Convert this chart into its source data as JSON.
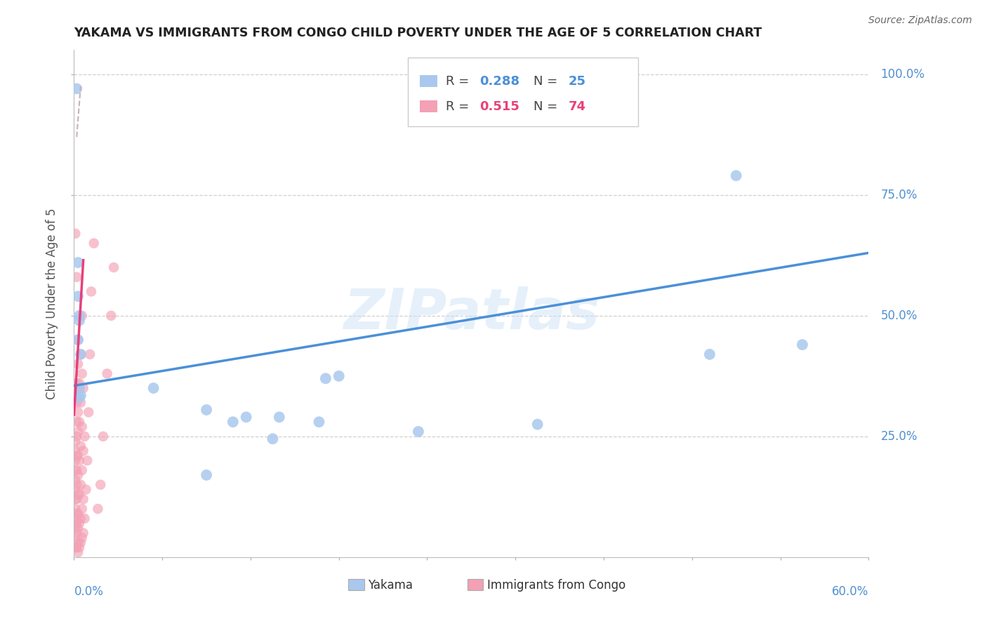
{
  "title": "YAKAMA VS IMMIGRANTS FROM CONGO CHILD POVERTY UNDER THE AGE OF 5 CORRELATION CHART",
  "source": "Source: ZipAtlas.com",
  "ylabel": "Child Poverty Under the Age of 5",
  "watermark": "ZIPatlas",
  "yakama_R": 0.288,
  "yakama_N": 25,
  "congo_R": 0.515,
  "congo_N": 74,
  "yakama_color": "#aac8ee",
  "congo_color": "#f4a0b5",
  "yakama_line_color": "#4a90d9",
  "congo_line_color": "#e8407a",
  "dashed_color": "#c8b0c0",
  "xlim": [
    0.0,
    0.6
  ],
  "ylim": [
    0.0,
    1.05
  ],
  "yakama_x": [
    0.002,
    0.003,
    0.003,
    0.004,
    0.004,
    0.005,
    0.06,
    0.1,
    0.12,
    0.13,
    0.155,
    0.185,
    0.19,
    0.2,
    0.26,
    0.35,
    0.48,
    0.5,
    0.55,
    0.003,
    0.004,
    0.004,
    0.005,
    0.1,
    0.15
  ],
  "yakama_y": [
    0.97,
    0.61,
    0.54,
    0.5,
    0.49,
    0.42,
    0.35,
    0.305,
    0.28,
    0.29,
    0.29,
    0.28,
    0.37,
    0.375,
    0.26,
    0.275,
    0.42,
    0.79,
    0.44,
    0.45,
    0.35,
    0.33,
    0.335,
    0.17,
    0.245
  ],
  "congo_x": [
    0.001,
    0.001,
    0.001,
    0.001,
    0.001,
    0.001,
    0.001,
    0.001,
    0.001,
    0.001,
    0.001,
    0.001,
    0.002,
    0.002,
    0.002,
    0.002,
    0.002,
    0.002,
    0.002,
    0.002,
    0.002,
    0.002,
    0.002,
    0.002,
    0.003,
    0.003,
    0.003,
    0.003,
    0.003,
    0.003,
    0.003,
    0.003,
    0.003,
    0.003,
    0.003,
    0.003,
    0.004,
    0.004,
    0.004,
    0.004,
    0.004,
    0.004,
    0.005,
    0.005,
    0.005,
    0.005,
    0.005,
    0.005,
    0.006,
    0.006,
    0.006,
    0.006,
    0.006,
    0.006,
    0.007,
    0.007,
    0.007,
    0.007,
    0.008,
    0.008,
    0.009,
    0.01,
    0.011,
    0.012,
    0.013,
    0.015,
    0.018,
    0.02,
    0.022,
    0.025,
    0.028,
    0.03,
    0.001,
    0.002
  ],
  "congo_y": [
    0.02,
    0.04,
    0.06,
    0.08,
    0.1,
    0.12,
    0.14,
    0.16,
    0.18,
    0.2,
    0.22,
    0.24,
    0.02,
    0.05,
    0.07,
    0.09,
    0.12,
    0.15,
    0.18,
    0.21,
    0.25,
    0.28,
    0.32,
    0.36,
    0.01,
    0.03,
    0.06,
    0.09,
    0.13,
    0.17,
    0.21,
    0.26,
    0.3,
    0.35,
    0.4,
    0.45,
    0.02,
    0.07,
    0.13,
    0.2,
    0.28,
    0.36,
    0.03,
    0.08,
    0.15,
    0.23,
    0.32,
    0.42,
    0.04,
    0.1,
    0.18,
    0.27,
    0.38,
    0.5,
    0.05,
    0.12,
    0.22,
    0.35,
    0.08,
    0.25,
    0.14,
    0.2,
    0.3,
    0.42,
    0.55,
    0.65,
    0.1,
    0.15,
    0.25,
    0.38,
    0.5,
    0.6,
    0.67,
    0.58
  ]
}
